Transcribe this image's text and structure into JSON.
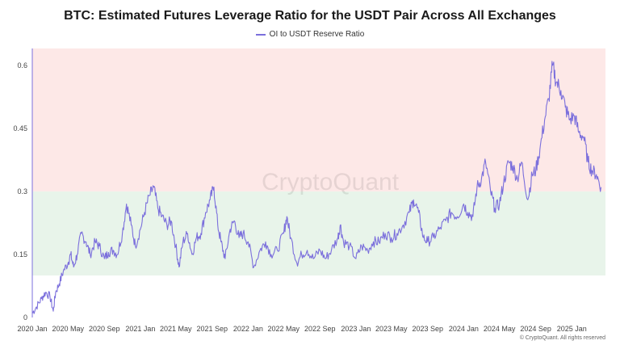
{
  "chart_data": {
    "type": "line",
    "title": "BTC: Estimated Futures Leverage Ratio for the USDT Pair Across All Exchanges",
    "series": [
      {
        "name": "OI to USDT Reserve Ratio",
        "color": "#7b6fdc",
        "points": [
          [
            "2020-01-01",
            0.01
          ],
          [
            "2020-01-15",
            0.025
          ],
          [
            "2020-02-01",
            0.045
          ],
          [
            "2020-02-15",
            0.06
          ],
          [
            "2020-03-01",
            0.05
          ],
          [
            "2020-03-12",
            0.015
          ],
          [
            "2020-03-20",
            0.06
          ],
          [
            "2020-04-01",
            0.08
          ],
          [
            "2020-04-15",
            0.11
          ],
          [
            "2020-05-01",
            0.13
          ],
          [
            "2020-05-10",
            0.15
          ],
          [
            "2020-05-20",
            0.12
          ],
          [
            "2020-06-01",
            0.15
          ],
          [
            "2020-06-15",
            0.2
          ],
          [
            "2020-07-01",
            0.18
          ],
          [
            "2020-07-15",
            0.15
          ],
          [
            "2020-08-01",
            0.18
          ],
          [
            "2020-08-15",
            0.17
          ],
          [
            "2020-09-01",
            0.14
          ],
          [
            "2020-09-15",
            0.155
          ],
          [
            "2020-10-01",
            0.16
          ],
          [
            "2020-10-15",
            0.15
          ],
          [
            "2020-11-01",
            0.2
          ],
          [
            "2020-11-15",
            0.27
          ],
          [
            "2020-12-01",
            0.22
          ],
          [
            "2020-12-15",
            0.17
          ],
          [
            "2021-01-01",
            0.21
          ],
          [
            "2021-01-15",
            0.25
          ],
          [
            "2021-02-01",
            0.29
          ],
          [
            "2021-02-15",
            0.31
          ],
          [
            "2021-03-01",
            0.26
          ],
          [
            "2021-03-15",
            0.24
          ],
          [
            "2021-04-01",
            0.22
          ],
          [
            "2021-04-15",
            0.23
          ],
          [
            "2021-05-01",
            0.17
          ],
          [
            "2021-05-12",
            0.12
          ],
          [
            "2021-05-25",
            0.18
          ],
          [
            "2021-06-10",
            0.2
          ],
          [
            "2021-06-25",
            0.15
          ],
          [
            "2021-07-10",
            0.19
          ],
          [
            "2021-07-25",
            0.2
          ],
          [
            "2021-08-10",
            0.25
          ],
          [
            "2021-08-25",
            0.28
          ],
          [
            "2021-09-07",
            0.31
          ],
          [
            "2021-09-20",
            0.22
          ],
          [
            "2021-10-01",
            0.18
          ],
          [
            "2021-10-15",
            0.14
          ],
          [
            "2021-11-01",
            0.21
          ],
          [
            "2021-11-15",
            0.23
          ],
          [
            "2021-12-01",
            0.19
          ],
          [
            "2021-12-15",
            0.2
          ],
          [
            "2022-01-01",
            0.18
          ],
          [
            "2022-01-20",
            0.12
          ],
          [
            "2022-02-10",
            0.16
          ],
          [
            "2022-03-01",
            0.18
          ],
          [
            "2022-03-20",
            0.15
          ],
          [
            "2022-04-10",
            0.16
          ],
          [
            "2022-05-01",
            0.2
          ],
          [
            "2022-05-12",
            0.24
          ],
          [
            "2022-05-25",
            0.19
          ],
          [
            "2022-06-15",
            0.13
          ],
          [
            "2022-07-01",
            0.15
          ],
          [
            "2022-07-20",
            0.16
          ],
          [
            "2022-08-10",
            0.14
          ],
          [
            "2022-09-01",
            0.16
          ],
          [
            "2022-09-20",
            0.14
          ],
          [
            "2022-10-10",
            0.16
          ],
          [
            "2022-11-01",
            0.19
          ],
          [
            "2022-11-09",
            0.22
          ],
          [
            "2022-11-20",
            0.18
          ],
          [
            "2022-12-10",
            0.17
          ],
          [
            "2023-01-01",
            0.14
          ],
          [
            "2023-01-20",
            0.17
          ],
          [
            "2023-02-10",
            0.16
          ],
          [
            "2023-03-01",
            0.18
          ],
          [
            "2023-03-20",
            0.18
          ],
          [
            "2023-04-10",
            0.2
          ],
          [
            "2023-05-01",
            0.19
          ],
          [
            "2023-05-20",
            0.2
          ],
          [
            "2023-06-10",
            0.22
          ],
          [
            "2023-07-01",
            0.25
          ],
          [
            "2023-07-15",
            0.28
          ],
          [
            "2023-08-01",
            0.25
          ],
          [
            "2023-08-17",
            0.19
          ],
          [
            "2023-09-01",
            0.18
          ],
          [
            "2023-09-20",
            0.19
          ],
          [
            "2023-10-10",
            0.21
          ],
          [
            "2023-11-01",
            0.23
          ],
          [
            "2023-11-20",
            0.25
          ],
          [
            "2023-12-10",
            0.24
          ],
          [
            "2024-01-01",
            0.27
          ],
          [
            "2024-01-15",
            0.25
          ],
          [
            "2024-02-01",
            0.24
          ],
          [
            "2024-02-15",
            0.31
          ],
          [
            "2024-03-01",
            0.33
          ],
          [
            "2024-03-15",
            0.37
          ],
          [
            "2024-04-01",
            0.3
          ],
          [
            "2024-04-15",
            0.26
          ],
          [
            "2024-05-01",
            0.27
          ],
          [
            "2024-05-15",
            0.32
          ],
          [
            "2024-06-01",
            0.37
          ],
          [
            "2024-06-15",
            0.36
          ],
          [
            "2024-07-01",
            0.33
          ],
          [
            "2024-07-15",
            0.37
          ],
          [
            "2024-08-05",
            0.28
          ],
          [
            "2024-08-20",
            0.34
          ],
          [
            "2024-09-01",
            0.35
          ],
          [
            "2024-09-15",
            0.4
          ],
          [
            "2024-10-01",
            0.47
          ],
          [
            "2024-10-15",
            0.52
          ],
          [
            "2024-10-28",
            0.6
          ],
          [
            "2024-11-10",
            0.56
          ],
          [
            "2024-11-25",
            0.54
          ],
          [
            "2024-12-10",
            0.5
          ],
          [
            "2024-12-25",
            0.47
          ],
          [
            "2025-01-10",
            0.48
          ],
          [
            "2025-01-25",
            0.44
          ],
          [
            "2025-02-10",
            0.43
          ],
          [
            "2025-02-25",
            0.37
          ],
          [
            "2025-03-10",
            0.35
          ],
          [
            "2025-03-25",
            0.34
          ],
          [
            "2025-04-10",
            0.31
          ]
        ]
      }
    ],
    "x_ticks": [
      "2020 Jan",
      "2020 May",
      "2020 Sep",
      "2021 Jan",
      "2021 May",
      "2021 Sep",
      "2022 Jan",
      "2022 May",
      "2022 Sep",
      "2023 Jan",
      "2023 May",
      "2023 Sep",
      "2024 Jan",
      "2024 May",
      "2024 Sep",
      "2025 Jan"
    ],
    "y_ticks": [
      "0",
      "0.15",
      "0.3",
      "0.45",
      "0.6"
    ],
    "ylim": [
      0,
      0.64
    ],
    "bands": [
      {
        "from": 0.1,
        "to": 0.3,
        "color": "#e8f4ea"
      },
      {
        "from": 0.3,
        "to": 0.64,
        "color": "#fde8e7"
      }
    ],
    "watermark": "CryptoQuant",
    "credit": "© CryptoQuant. All rights reserved"
  }
}
